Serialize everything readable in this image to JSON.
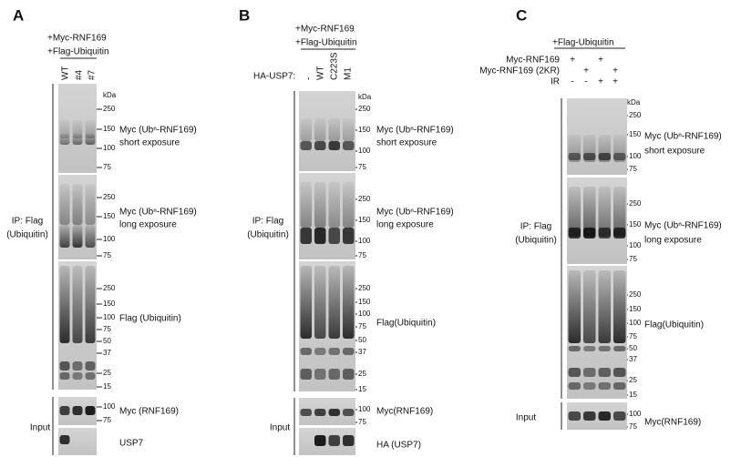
{
  "panels": [
    {
      "letter": "A",
      "treatments": [
        "+Myc-RNF169",
        "+Flag-Ubiquitin"
      ],
      "lanes": [
        "WT",
        "#4",
        "#7"
      ],
      "kda": "kDa",
      "ip_label": [
        "IP: Flag",
        "(Ubiquitin)"
      ],
      "input_label": "Input",
      "blots": [
        {
          "markers": [
            250,
            150,
            100,
            75
          ],
          "label": [
            "Myc (Ubⁿ-RNF169)",
            "short exposure"
          ]
        },
        {
          "markers": [
            250,
            150,
            100,
            75
          ],
          "label": [
            "Myc (Ubⁿ-RNF169)",
            "long exposure"
          ]
        },
        {
          "markers": [
            250,
            150,
            100,
            75,
            50,
            37,
            25,
            15
          ],
          "label": [
            "Flag (Ubiquitin)"
          ]
        },
        {
          "markers": [
            100,
            75
          ],
          "label": [
            "Myc (RNF169)"
          ]
        },
        {
          "markers": [],
          "label": [
            "USP7"
          ]
        }
      ]
    },
    {
      "letter": "B",
      "treatments": [
        "+Myc-RNF169",
        "+Flag-Ubiquitin"
      ],
      "lane_header": "HA-USP7:",
      "lanes": [
        "-",
        "WT",
        "C223S",
        "M1"
      ],
      "kda": "kDa",
      "ip_label": [
        "IP: Flag",
        "(Ubiquitin)"
      ],
      "input_label": "Input",
      "blots": [
        {
          "markers": [
            250,
            150,
            100,
            75
          ],
          "label": [
            "Myc (Ubⁿ-RNF169)",
            "short exposure"
          ]
        },
        {
          "markers": [
            250,
            150,
            100,
            75
          ],
          "label": [
            "Myc (Ubⁿ-RNF169)",
            "long exposure"
          ]
        },
        {
          "markers": [
            250,
            150,
            100,
            75,
            50,
            37,
            25,
            15
          ],
          "label": [
            "Flag(Ubiquitin)"
          ]
        },
        {
          "markers": [
            100,
            75
          ],
          "label": [
            "Myc(RNF169)"
          ]
        },
        {
          "markers": [],
          "label": [
            "HA (USP7)"
          ]
        }
      ]
    },
    {
      "letter": "C",
      "treatments": [
        "+Flag-Ubiquitin"
      ],
      "kda": "kDa",
      "lane_rows": [
        {
          "name": "Myc-RNF169",
          "signs": [
            "+",
            null,
            "+",
            null
          ]
        },
        {
          "name": "Myc-RNF169 (2KR)",
          "signs": [
            null,
            "+",
            null,
            "+"
          ]
        },
        {
          "name": "IR",
          "signs": [
            "-",
            "-",
            "+",
            "+"
          ]
        }
      ],
      "ip_label": [
        "IP: Flag",
        "(Ubiquitin)"
      ],
      "input_label": "Input",
      "blots": [
        {
          "markers": [
            250,
            150,
            100,
            75
          ],
          "label": [
            "Myc (Ubⁿ-RNF169)",
            "short exposure"
          ]
        },
        {
          "markers": [
            250,
            150,
            100,
            75
          ],
          "label": [
            "Myc (Ubⁿ-RNF169)",
            "long exposure"
          ]
        },
        {
          "markers": [
            250,
            150,
            100,
            75,
            50,
            37,
            25,
            15
          ],
          "label": [
            "Flag(Ubiquitin)"
          ]
        },
        {
          "markers": [
            100,
            75
          ],
          "label": [
            "Myc(RNF169)"
          ]
        }
      ]
    }
  ]
}
